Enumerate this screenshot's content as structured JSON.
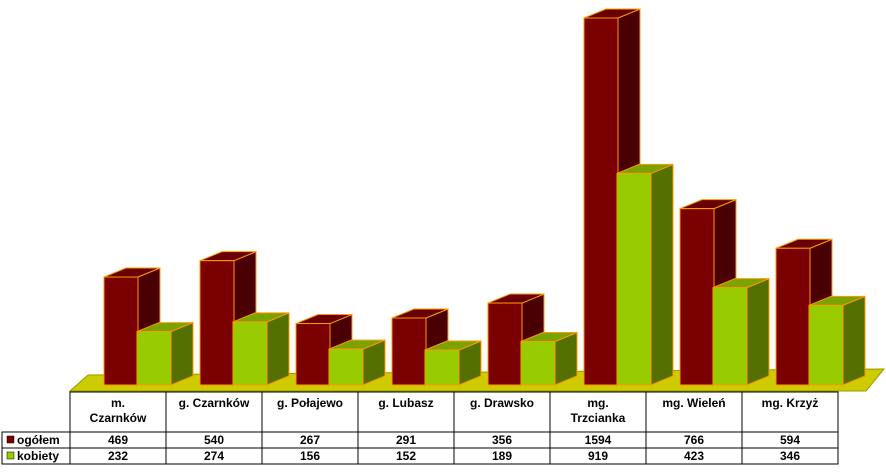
{
  "chart_data": {
    "type": "bar",
    "title": "",
    "xlabel": "",
    "ylabel": "",
    "ylim": [
      0,
      1594
    ],
    "grid": false,
    "legend_placement": "left-of-table",
    "categories": [
      [
        "m.",
        "Czarnków"
      ],
      [
        "g. Czarnków"
      ],
      [
        "g. Połajewo"
      ],
      [
        "g. Lubasz"
      ],
      [
        "g. Drawsko"
      ],
      [
        "mg.",
        "Trzcianka"
      ],
      [
        "mg. Wieleń"
      ],
      [
        "mg. Krzyż"
      ]
    ],
    "series": [
      {
        "name": "ogółem",
        "color": "#7b0000",
        "values": [
          469,
          540,
          267,
          291,
          356,
          1594,
          766,
          594
        ]
      },
      {
        "name": "kobiety",
        "color": "#99cc00",
        "values": [
          232,
          274,
          156,
          152,
          189,
          919,
          423,
          346
        ]
      }
    ],
    "colors": {
      "floor": "#cccc00",
      "bar_outline": "#ff9900",
      "table_border": "#000000"
    }
  }
}
